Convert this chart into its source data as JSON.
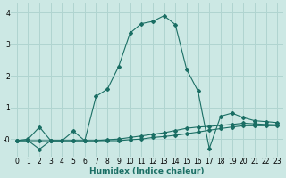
{
  "xlabel": "Humidex (Indice chaleur)",
  "ylabel": "",
  "bg_color": "#cce8e4",
  "grid_color": "#b0d4d0",
  "line_color": "#1a6e64",
  "xlim": [
    -0.5,
    23.5
  ],
  "ylim": [
    -0.55,
    4.3
  ],
  "xticks": [
    0,
    1,
    2,
    3,
    4,
    5,
    6,
    7,
    8,
    9,
    10,
    11,
    12,
    13,
    14,
    15,
    16,
    17,
    18,
    19,
    20,
    21,
    22,
    23
  ],
  "yticks": [
    0,
    1,
    2,
    3,
    4
  ],
  "ytick_labels": [
    "-0",
    "1",
    "2",
    "3",
    "4"
  ],
  "line1_x": [
    0,
    1,
    2,
    3,
    4,
    5,
    6,
    7,
    8,
    9,
    10,
    11,
    12,
    13,
    14,
    15,
    16,
    17,
    18,
    19,
    20,
    21,
    22,
    23
  ],
  "line1_y": [
    -0.05,
    -0.05,
    -0.32,
    -0.05,
    -0.05,
    -0.05,
    -0.05,
    -0.05,
    -0.05,
    -0.05,
    -0.02,
    0.0,
    0.05,
    0.08,
    0.12,
    0.17,
    0.22,
    0.28,
    0.33,
    0.38,
    0.42,
    0.42,
    0.42,
    0.42
  ],
  "line2_x": [
    0,
    1,
    2,
    3,
    4,
    5,
    6,
    7,
    8,
    9,
    10,
    11,
    12,
    13,
    14,
    15,
    16,
    17,
    18,
    19,
    20,
    21,
    22,
    23
  ],
  "line2_y": [
    -0.05,
    -0.05,
    -0.05,
    -0.05,
    -0.05,
    -0.05,
    -0.05,
    -0.05,
    -0.02,
    0.0,
    0.05,
    0.1,
    0.15,
    0.2,
    0.27,
    0.34,
    0.38,
    0.4,
    0.43,
    0.46,
    0.5,
    0.48,
    0.46,
    0.45
  ],
  "line3_x": [
    0,
    1,
    2,
    3,
    4,
    5,
    6,
    7,
    8,
    9,
    10,
    11,
    12,
    13,
    14,
    15,
    16,
    17,
    18,
    19,
    20,
    21,
    22,
    23
  ],
  "line3_y": [
    -0.05,
    0.0,
    0.38,
    -0.05,
    -0.05,
    0.25,
    -0.05,
    1.35,
    1.58,
    2.3,
    3.35,
    3.65,
    3.72,
    3.9,
    3.62,
    2.2,
    1.52,
    -0.3,
    0.72,
    0.82,
    0.68,
    0.58,
    0.55,
    0.52
  ]
}
